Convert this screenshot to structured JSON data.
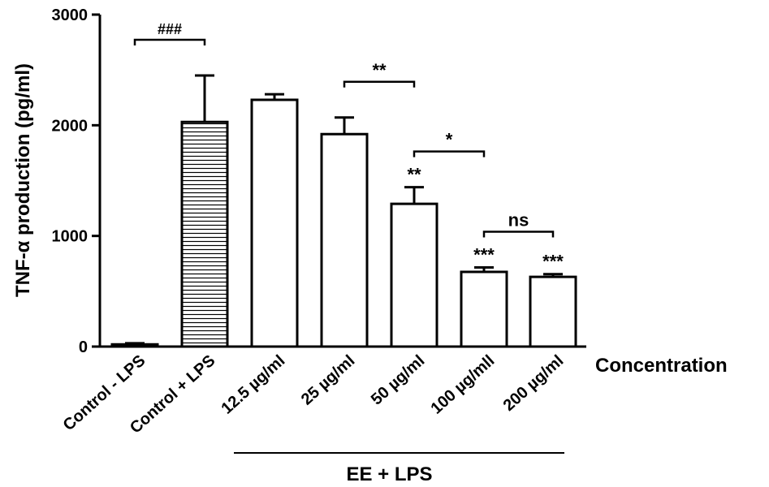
{
  "chart_data": {
    "type": "bar",
    "ylabel": "TNF-α production (pg/ml)",
    "xlabel": "Concentration",
    "group_label": "EE + LPS",
    "ylim": [
      0,
      3000
    ],
    "yticks": [
      "0",
      "1000",
      "2000",
      "3000"
    ],
    "categories": [
      "Control - LPS",
      "Control + LPS",
      "12.5 µg/ml",
      "25 µg/ml",
      "50 µg/ml",
      "100 µg/mll",
      "200 µg/ml"
    ],
    "values": [
      20,
      2030,
      2230,
      1920,
      1290,
      675,
      630
    ],
    "errors": [
      10,
      420,
      50,
      150,
      150,
      40,
      25
    ],
    "fill": [
      "white",
      "horizontal-lines",
      "white",
      "white",
      "white",
      "white",
      "white"
    ],
    "above_bar_marks": [
      "",
      "",
      "",
      "",
      "**",
      "***",
      "***"
    ],
    "brackets": [
      {
        "from": 0,
        "to": 1,
        "label": "###"
      },
      {
        "from": 3,
        "to": 4,
        "label": "**"
      },
      {
        "from": 4,
        "to": 5,
        "label": "*"
      },
      {
        "from": 5,
        "to": 6,
        "label": "ns"
      }
    ],
    "group_range": [
      2,
      6
    ]
  }
}
